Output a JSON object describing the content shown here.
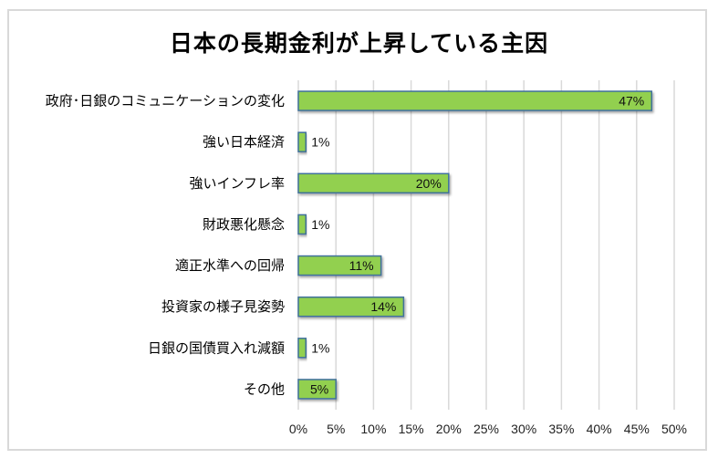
{
  "chart_data": {
    "type": "bar",
    "orientation": "horizontal",
    "title": "日本の長期金利が上昇している主因",
    "categories": [
      "政府･日銀のコミュニケーションの変化",
      "強い日本経済",
      "強いインフレ率",
      "財政悪化懸念",
      "適正水準への回帰",
      "投資家の様子見姿勢",
      "日銀の国債買入れ減額",
      "その他"
    ],
    "values": [
      47,
      1,
      20,
      1,
      11,
      14,
      1,
      5
    ],
    "data_labels": [
      "47%",
      "1%",
      "20%",
      "1%",
      "11%",
      "14%",
      "1%",
      "5%"
    ],
    "xlabel": "",
    "ylabel": "",
    "xlim": [
      0,
      50
    ],
    "x_ticks": [
      0,
      5,
      10,
      15,
      20,
      25,
      30,
      35,
      40,
      45,
      50
    ],
    "x_tick_labels": [
      "0%",
      "5%",
      "10%",
      "15%",
      "20%",
      "25%",
      "30%",
      "35%",
      "40%",
      "45%",
      "50%"
    ],
    "grid": true,
    "legend": "none",
    "colors": {
      "bar_fill": "#92D050",
      "bar_border": "#41719C",
      "grid": "#D9D9D9",
      "frame": "#D9D9D9"
    }
  }
}
